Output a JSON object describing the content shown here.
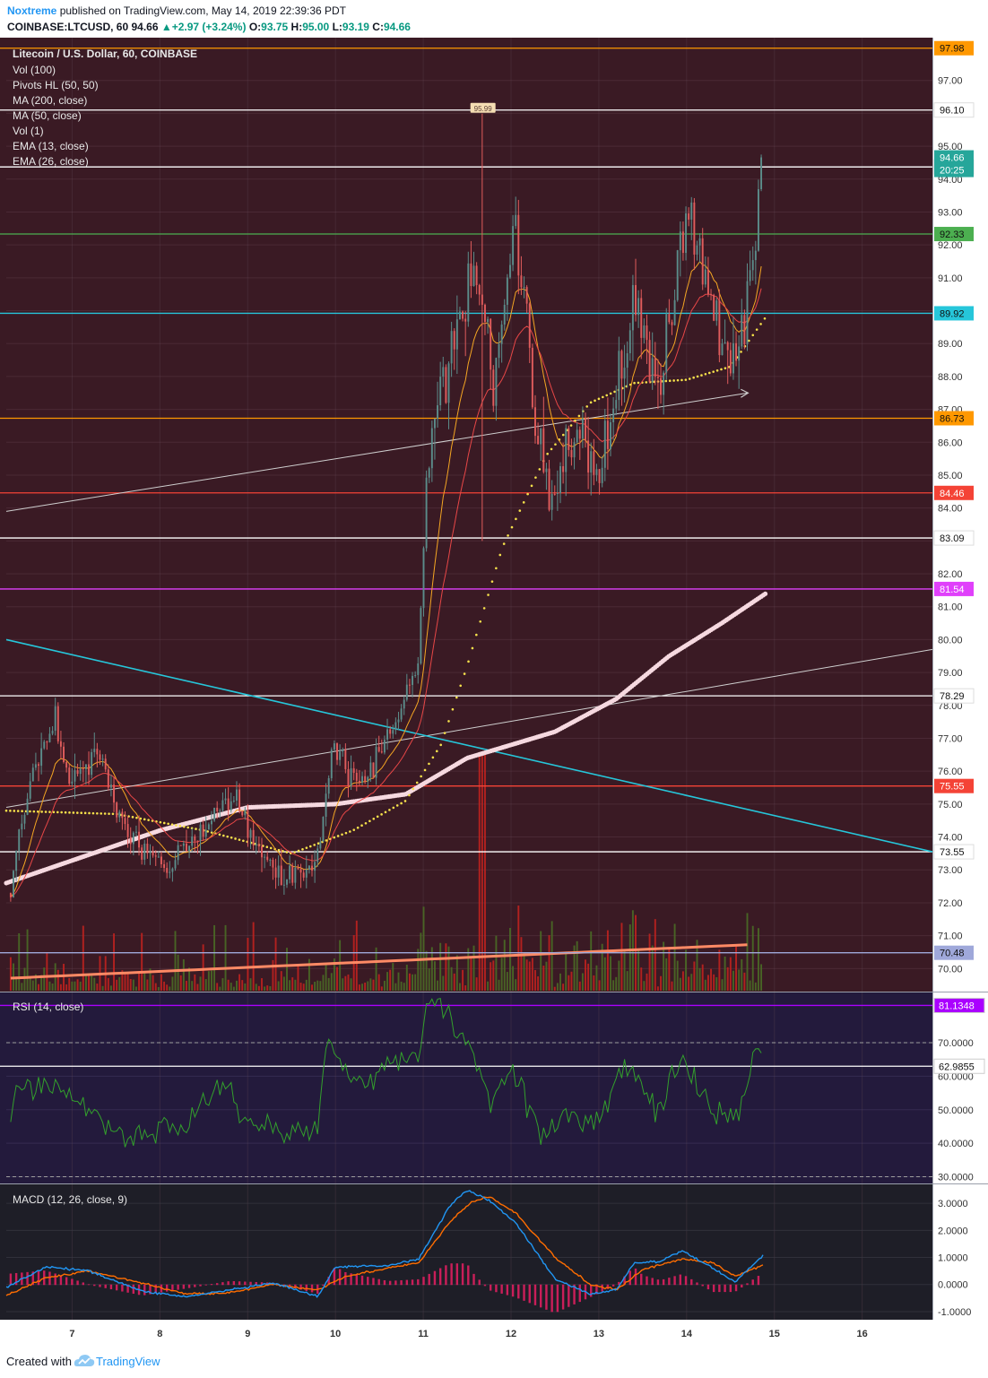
{
  "header": {
    "user": "Noxtreme",
    "published_text": "published on TradingView.com, May 14, 2019 22:39:36 PDT",
    "symbol": "COINBASE:LTCUSD, 60",
    "last": "94.66",
    "change": "+2.97 (+3.24%)",
    "o_label": "O:",
    "o": "93.75",
    "h_label": "H:",
    "h": "95.00",
    "l_label": "L:",
    "l": "93.19",
    "c_label": "C:",
    "c": "94.66"
  },
  "footer": {
    "created_with": "Created with",
    "brand": "TradingView"
  },
  "colors": {
    "price_bg": "#3a1a24",
    "rsi_bg": "#231a3c",
    "macd_bg": "#1e1e27",
    "up": "#5b8c8a",
    "down": "#e05c5c",
    "vol_up": "#4a6b26",
    "vol_down": "#c0221f",
    "ma200": "#f6d9e0",
    "ma50": "#f6e14b",
    "ema13": "#f5a623",
    "ema26": "#e84747",
    "rsi_line": "#33a02c",
    "macd_line": "#2196f3",
    "signal_line": "#ff6d00",
    "hist": "#e91e63"
  },
  "chart_data": [
    {
      "type": "candlestick",
      "title": "Litecoin / U.S. Dollar, 60, COINBASE",
      "indicators": [
        "Vol (100)",
        "Pivots HL (50, 50)",
        "MA (200, close)",
        "MA (50, close)",
        "Vol (1)",
        "EMA (13, close)",
        "EMA (26, close)"
      ],
      "x_ticks": [
        "7",
        "8",
        "9",
        "10",
        "11",
        "12",
        "13",
        "14",
        "15",
        "16"
      ],
      "x_range": [
        6.25,
        16.8
      ],
      "ylim": [
        69.3,
        98.3
      ],
      "y_ticks": [
        70,
        71,
        72,
        73,
        74,
        75,
        76,
        77,
        78,
        79,
        80,
        81,
        82,
        83,
        84,
        85,
        86,
        87,
        88,
        89,
        90,
        91,
        92,
        93,
        94,
        95,
        96,
        97
      ],
      "levels": [
        {
          "value": 97.98,
          "color": "#ff9800",
          "label": "97.98"
        },
        {
          "value": 96.1,
          "color": "#ffffff",
          "label": "96.10"
        },
        {
          "value": 94.37,
          "color": "#ffffff",
          "label": "94.37"
        },
        {
          "value": 92.33,
          "color": "#4caf50",
          "label": "92.33"
        },
        {
          "value": 89.92,
          "color": "#26c6da",
          "label": "89.92"
        },
        {
          "value": 86.73,
          "color": "#ff9800",
          "label": "86.73"
        },
        {
          "value": 84.46,
          "color": "#f44336",
          "label": "84.46"
        },
        {
          "value": 83.09,
          "color": "#ffffff",
          "label": "83.09"
        },
        {
          "value": 81.54,
          "color": "#e040fb",
          "label": "81.54"
        },
        {
          "value": 78.29,
          "color": "#ffffff",
          "label": "78.29"
        },
        {
          "value": 75.55,
          "color": "#f44336",
          "label": "75.55"
        },
        {
          "value": 73.55,
          "color": "#ffffff",
          "label": "73.55"
        },
        {
          "value": 70.48,
          "color": "#9fa8da",
          "label": "70.48"
        }
      ],
      "last_price": {
        "value": 94.66,
        "label": "94.66",
        "countdown": "20:25"
      },
      "pivot_high": {
        "x": 11.68,
        "value": 95.99,
        "label": "95.99"
      },
      "key_points": [
        {
          "x": 6.3,
          "value": 72.3
        },
        {
          "x": 6.5,
          "value": 75.5
        },
        {
          "x": 6.8,
          "value": 77.5
        },
        {
          "x": 7.0,
          "value": 75.6
        },
        {
          "x": 7.3,
          "value": 76.6
        },
        {
          "x": 7.6,
          "value": 74.2
        },
        {
          "x": 8.0,
          "value": 73.0
        },
        {
          "x": 8.4,
          "value": 73.8
        },
        {
          "x": 8.8,
          "value": 75.3
        },
        {
          "x": 9.3,
          "value": 72.8
        },
        {
          "x": 9.8,
          "value": 73.2
        },
        {
          "x": 9.95,
          "value": 76.8
        },
        {
          "x": 10.3,
          "value": 75.5
        },
        {
          "x": 10.7,
          "value": 77.5
        },
        {
          "x": 10.95,
          "value": 79.5
        },
        {
          "x": 11.05,
          "value": 85.5
        },
        {
          "x": 11.35,
          "value": 89.5
        },
        {
          "x": 11.6,
          "value": 91.5
        },
        {
          "x": 11.8,
          "value": 87.5
        },
        {
          "x": 12.05,
          "value": 92.5
        },
        {
          "x": 12.3,
          "value": 86.0
        },
        {
          "x": 12.45,
          "value": 84.2
        },
        {
          "x": 12.7,
          "value": 86.5
        },
        {
          "x": 13.0,
          "value": 85.0
        },
        {
          "x": 13.2,
          "value": 87.5
        },
        {
          "x": 13.4,
          "value": 90.5
        },
        {
          "x": 13.7,
          "value": 87.5
        },
        {
          "x": 13.9,
          "value": 92.0
        },
        {
          "x": 14.05,
          "value": 93.0
        },
        {
          "x": 14.3,
          "value": 90.5
        },
        {
          "x": 14.45,
          "value": 88.2
        },
        {
          "x": 14.6,
          "value": 88.7
        },
        {
          "x": 14.8,
          "value": 92.0
        },
        {
          "x": 14.85,
          "value": 94.66
        }
      ],
      "ma200_points": [
        [
          6.25,
          72.6
        ],
        [
          8.0,
          74.2
        ],
        [
          9.0,
          74.9
        ],
        [
          10.0,
          75.0
        ],
        [
          10.8,
          75.3
        ],
        [
          11.5,
          76.4
        ],
        [
          12.5,
          77.2
        ],
        [
          13.2,
          78.2
        ],
        [
          13.8,
          79.5
        ],
        [
          14.4,
          80.5
        ],
        [
          14.9,
          81.4
        ]
      ],
      "ma50_points": [
        [
          6.25,
          74.8
        ],
        [
          7.5,
          74.7
        ],
        [
          8.5,
          74.2
        ],
        [
          9.5,
          73.5
        ],
        [
          10.2,
          74.2
        ],
        [
          10.8,
          75.1
        ],
        [
          11.2,
          76.8
        ],
        [
          11.5,
          79.2
        ],
        [
          11.9,
          82.8
        ],
        [
          12.4,
          85.6
        ],
        [
          12.9,
          87.2
        ],
        [
          13.4,
          87.8
        ],
        [
          14.0,
          87.9
        ],
        [
          14.5,
          88.3
        ],
        [
          14.9,
          89.8
        ]
      ],
      "trendlines": [
        {
          "color": "#cfcfcf",
          "points": [
            [
              6.25,
              83.9
            ],
            [
              14.7,
              87.5
            ]
          ],
          "arrow": true
        },
        {
          "color": "#cfcfcf",
          "points": [
            [
              6.25,
              74.9
            ],
            [
              16.8,
              79.7
            ]
          ],
          "arrow": false
        },
        {
          "color": "#26c6da",
          "points": [
            [
              6.25,
              80.0
            ],
            [
              16.8,
              73.55
            ]
          ],
          "arrow": false
        }
      ],
      "volume_spike": {
        "x": 11.68
      }
    },
    {
      "type": "line",
      "title": "RSI (14, close)",
      "ylim": [
        28.0,
        85.0
      ],
      "y_ticks": [
        30,
        40,
        50,
        60,
        70
      ],
      "y_tick_labels": [
        "30.0000",
        "40.0000",
        "50.0000",
        "60.0000",
        "70.0000"
      ],
      "bands": [
        30,
        70
      ],
      "levels": [
        {
          "value": 81.1348,
          "color": "#aa00ff",
          "label": "81.1348"
        },
        {
          "value": 62.9855,
          "color": "#ffffff",
          "label": "62.9855"
        }
      ],
      "key_points": [
        {
          "x": 6.25,
          "value": 41
        },
        {
          "x": 6.4,
          "value": 58
        },
        {
          "x": 6.8,
          "value": 57
        },
        {
          "x": 7.2,
          "value": 50
        },
        {
          "x": 7.6,
          "value": 42
        },
        {
          "x": 8.0,
          "value": 44
        },
        {
          "x": 8.4,
          "value": 47
        },
        {
          "x": 8.7,
          "value": 59
        },
        {
          "x": 9.0,
          "value": 47
        },
        {
          "x": 9.4,
          "value": 43
        },
        {
          "x": 9.8,
          "value": 44
        },
        {
          "x": 9.9,
          "value": 71
        },
        {
          "x": 10.3,
          "value": 58
        },
        {
          "x": 10.7,
          "value": 64
        },
        {
          "x": 10.95,
          "value": 67
        },
        {
          "x": 11.05,
          "value": 84
        },
        {
          "x": 11.3,
          "value": 78
        },
        {
          "x": 11.6,
          "value": 65
        },
        {
          "x": 11.75,
          "value": 53
        },
        {
          "x": 12.0,
          "value": 64
        },
        {
          "x": 12.35,
          "value": 41
        },
        {
          "x": 12.7,
          "value": 49
        },
        {
          "x": 13.0,
          "value": 46
        },
        {
          "x": 13.3,
          "value": 64
        },
        {
          "x": 13.65,
          "value": 50
        },
        {
          "x": 13.95,
          "value": 64
        },
        {
          "x": 14.35,
          "value": 47
        },
        {
          "x": 14.6,
          "value": 49
        },
        {
          "x": 14.8,
          "value": 69
        },
        {
          "x": 14.88,
          "value": 63
        }
      ]
    },
    {
      "type": "line",
      "title": "MACD (12, 26, close, 9)",
      "ylim": [
        -1.3,
        3.7
      ],
      "y_ticks": [
        -1,
        0,
        1,
        2,
        3
      ],
      "y_tick_labels": [
        "-1.0000",
        "0.0000",
        "1.0000",
        "2.0000",
        "3.0000"
      ],
      "macd_points": [
        [
          6.25,
          -0.1
        ],
        [
          6.7,
          0.65
        ],
        [
          7.2,
          0.5
        ],
        [
          7.8,
          -0.25
        ],
        [
          8.3,
          -0.45
        ],
        [
          8.8,
          -0.2
        ],
        [
          9.3,
          0.05
        ],
        [
          9.8,
          -0.45
        ],
        [
          10.0,
          0.65
        ],
        [
          10.6,
          0.7
        ],
        [
          10.95,
          0.95
        ],
        [
          11.3,
          2.9
        ],
        [
          11.5,
          3.5
        ],
        [
          11.75,
          3.1
        ],
        [
          12.05,
          2.3
        ],
        [
          12.5,
          0.2
        ],
        [
          12.9,
          -0.35
        ],
        [
          13.2,
          -0.2
        ],
        [
          13.4,
          0.8
        ],
        [
          13.7,
          0.85
        ],
        [
          13.95,
          1.25
        ],
        [
          14.3,
          0.6
        ],
        [
          14.55,
          0.1
        ],
        [
          14.88,
          1.1
        ]
      ],
      "signal_points": [
        [
          6.25,
          -0.4
        ],
        [
          6.7,
          0.25
        ],
        [
          7.2,
          0.5
        ],
        [
          7.8,
          0.05
        ],
        [
          8.3,
          -0.35
        ],
        [
          8.8,
          -0.3
        ],
        [
          9.3,
          0.0
        ],
        [
          9.8,
          -0.2
        ],
        [
          10.1,
          0.3
        ],
        [
          10.6,
          0.6
        ],
        [
          10.95,
          0.8
        ],
        [
          11.3,
          2.3
        ],
        [
          11.55,
          3.05
        ],
        [
          11.75,
          3.25
        ],
        [
          12.05,
          2.65
        ],
        [
          12.5,
          1.0
        ],
        [
          12.9,
          0.0
        ],
        [
          13.2,
          -0.2
        ],
        [
          13.5,
          0.55
        ],
        [
          13.95,
          0.95
        ],
        [
          14.3,
          0.8
        ],
        [
          14.55,
          0.3
        ],
        [
          14.88,
          0.75
        ]
      ]
    }
  ]
}
